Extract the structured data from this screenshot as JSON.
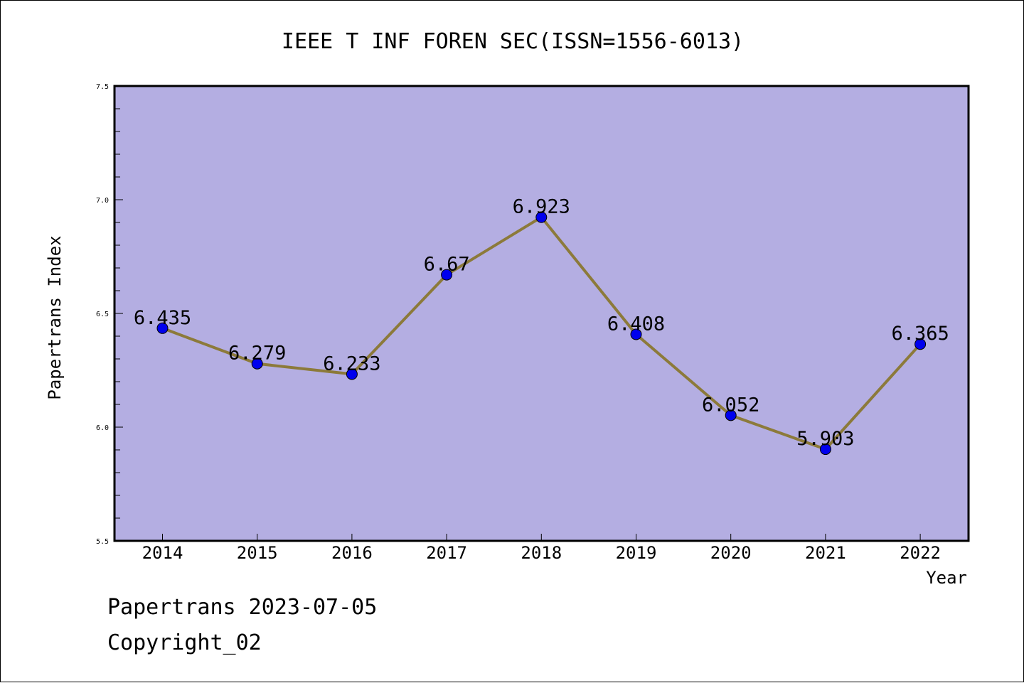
{
  "chart_data": {
    "type": "line",
    "title": "IEEE T INF FOREN SEC(ISSN=1556-6013)",
    "xlabel": "Year",
    "ylabel": "Papertrans Index",
    "x": [
      "2014",
      "2015",
      "2016",
      "2017",
      "2018",
      "2019",
      "2020",
      "2021",
      "2022"
    ],
    "series": [
      {
        "values": [
          6.435,
          6.279,
          6.233,
          6.67,
          6.923,
          6.408,
          6.052,
          5.903,
          6.365
        ],
        "labels": [
          "6.435",
          "6.279",
          "6.233",
          "6.67",
          "6.923",
          "6.408",
          "6.052",
          "5.903",
          "6.365"
        ],
        "line_color": "#8c7a3a",
        "marker_color": "#0000ee"
      }
    ],
    "ylim": [
      5.5,
      7.5
    ],
    "yticks": [
      "5.5",
      "6.0",
      "6.5",
      "7.0",
      "7.5"
    ],
    "yticks_values": [
      5.5,
      6.0,
      6.5,
      7.0,
      7.5
    ],
    "plot_background": "#b4aee2",
    "grid": false
  },
  "footer": {
    "line1": "Papertrans 2023-07-05",
    "line2": "Copyright_02"
  }
}
